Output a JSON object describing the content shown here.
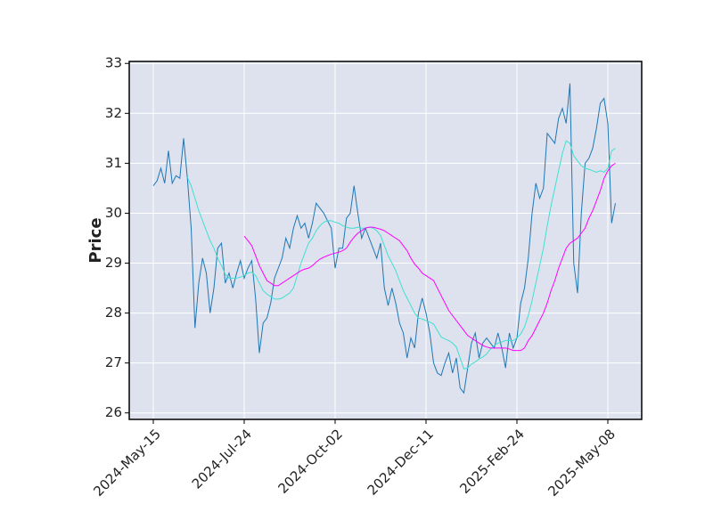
{
  "chart_data": {
    "type": "line",
    "ylabel": "Price",
    "categories": [
      "2024-May-15",
      null,
      null,
      null,
      null,
      null,
      null,
      null,
      null,
      null,
      null,
      null,
      null,
      null,
      null,
      null,
      null,
      null,
      null,
      null,
      null,
      null,
      null,
      null,
      "2024-Jul-24",
      null,
      null,
      null,
      null,
      null,
      null,
      null,
      null,
      null,
      null,
      null,
      null,
      null,
      null,
      null,
      null,
      null,
      null,
      null,
      null,
      null,
      null,
      null,
      "2024-Oct-02",
      null,
      null,
      null,
      null,
      null,
      null,
      null,
      null,
      null,
      null,
      null,
      null,
      null,
      null,
      null,
      null,
      null,
      null,
      null,
      null,
      null,
      null,
      null,
      "2024-Dec-11",
      null,
      null,
      null,
      null,
      null,
      null,
      null,
      null,
      null,
      null,
      null,
      null,
      null,
      null,
      null,
      null,
      null,
      null,
      null,
      null,
      null,
      null,
      null,
      "2025-Feb-24",
      null,
      null,
      null,
      null,
      null,
      null,
      null,
      null,
      null,
      null,
      null,
      null,
      null,
      null,
      null,
      null,
      null,
      null,
      null,
      null,
      null,
      null,
      null,
      "2025-May-08",
      null,
      null
    ],
    "series": [
      {
        "color": "#1f77b4",
        "values": [
          30.55,
          30.65,
          30.9,
          30.6,
          31.25,
          30.6,
          30.75,
          30.7,
          31.5,
          30.7,
          29.7,
          27.7,
          28.6,
          29.1,
          28.8,
          28.0,
          28.5,
          29.3,
          29.4,
          28.6,
          28.8,
          28.5,
          28.8,
          29.05,
          28.7,
          28.9,
          29.05,
          28.3,
          27.2,
          27.8,
          27.9,
          28.2,
          28.7,
          28.9,
          29.1,
          29.5,
          29.3,
          29.7,
          29.95,
          29.7,
          29.8,
          29.5,
          29.8,
          30.2,
          30.1,
          30.0,
          29.85,
          29.7,
          28.9,
          29.3,
          29.3,
          29.9,
          30.0,
          30.55,
          30.0,
          29.5,
          29.7,
          29.5,
          29.3,
          29.1,
          29.4,
          28.5,
          28.15,
          28.5,
          28.2,
          27.8,
          27.6,
          27.1,
          27.5,
          27.3,
          28.0,
          28.3,
          28.0,
          27.6,
          27.0,
          26.8,
          26.75,
          27.0,
          27.2,
          26.8,
          27.1,
          26.5,
          26.4,
          26.9,
          27.4,
          27.6,
          27.1,
          27.4,
          27.5,
          27.4,
          27.3,
          27.6,
          27.3,
          26.9,
          27.6,
          27.3,
          27.5,
          28.2,
          28.5,
          29.1,
          30.0,
          30.6,
          30.3,
          30.5,
          31.6,
          31.5,
          31.4,
          31.9,
          32.1,
          31.8,
          32.6,
          29.0,
          28.4,
          30.0,
          31.0,
          31.1,
          31.3,
          31.7,
          32.2,
          32.3,
          31.8,
          29.8,
          30.2
        ]
      },
      {
        "color": "#40e0d0",
        "values": [
          null,
          null,
          null,
          null,
          null,
          null,
          null,
          null,
          null,
          30.72,
          30.55,
          30.3,
          30.05,
          29.85,
          29.65,
          29.45,
          29.3,
          29.1,
          28.95,
          28.78,
          28.7,
          28.7,
          28.7,
          28.72,
          28.75,
          28.8,
          28.82,
          28.75,
          28.6,
          28.45,
          28.38,
          28.33,
          28.28,
          28.28,
          28.3,
          28.35,
          28.4,
          28.5,
          28.75,
          29.0,
          29.2,
          29.4,
          29.5,
          29.65,
          29.75,
          29.82,
          29.85,
          29.85,
          29.82,
          29.8,
          29.75,
          29.72,
          29.7,
          29.7,
          29.72,
          29.7,
          29.7,
          29.72,
          29.7,
          29.65,
          29.55,
          29.35,
          29.15,
          29.0,
          28.85,
          28.65,
          28.45,
          28.3,
          28.15,
          28.0,
          27.9,
          27.88,
          27.85,
          27.82,
          27.78,
          27.65,
          27.52,
          27.48,
          27.45,
          27.4,
          27.32,
          27.1,
          26.88,
          26.9,
          26.98,
          27.02,
          27.08,
          27.12,
          27.18,
          27.28,
          27.35,
          27.4,
          27.42,
          27.45,
          27.45,
          27.45,
          27.5,
          27.58,
          27.72,
          27.95,
          28.25,
          28.6,
          28.95,
          29.3,
          29.75,
          30.15,
          30.5,
          30.85,
          31.2,
          31.45,
          31.4,
          31.15,
          31.05,
          30.95,
          30.9,
          30.88,
          30.85,
          30.82,
          30.85,
          30.82,
          30.9,
          31.25,
          31.3
        ]
      },
      {
        "color": "#ff00ff",
        "values": [
          null,
          null,
          null,
          null,
          null,
          null,
          null,
          null,
          null,
          null,
          null,
          null,
          null,
          null,
          null,
          null,
          null,
          null,
          null,
          null,
          null,
          null,
          null,
          null,
          29.54,
          29.45,
          29.35,
          29.15,
          28.95,
          28.8,
          28.65,
          28.6,
          28.55,
          28.55,
          28.6,
          28.65,
          28.7,
          28.75,
          28.8,
          28.85,
          28.88,
          28.9,
          28.95,
          29.02,
          29.08,
          29.12,
          29.15,
          29.18,
          29.2,
          29.22,
          29.25,
          29.3,
          29.42,
          29.52,
          29.6,
          29.65,
          29.7,
          29.72,
          29.72,
          29.7,
          29.68,
          29.65,
          29.6,
          29.55,
          29.5,
          29.45,
          29.35,
          29.25,
          29.1,
          28.98,
          28.9,
          28.8,
          28.75,
          28.7,
          28.65,
          28.5,
          28.35,
          28.2,
          28.05,
          27.95,
          27.85,
          27.75,
          27.65,
          27.55,
          27.5,
          27.45,
          27.4,
          27.35,
          27.32,
          27.3,
          27.3,
          27.3,
          27.3,
          27.3,
          27.28,
          27.25,
          27.25,
          27.25,
          27.3,
          27.45,
          27.55,
          27.7,
          27.85,
          28.0,
          28.2,
          28.45,
          28.65,
          28.9,
          29.1,
          29.3,
          29.4,
          29.45,
          29.5,
          29.6,
          29.7,
          29.9,
          30.05,
          30.25,
          30.45,
          30.7,
          30.85,
          30.95,
          31.0
        ]
      }
    ],
    "ylim": [
      25.87,
      33.04
    ],
    "yticks": [
      26,
      27,
      28,
      29,
      30,
      31,
      32,
      33
    ],
    "grid": true,
    "background": "#dde2ee"
  }
}
